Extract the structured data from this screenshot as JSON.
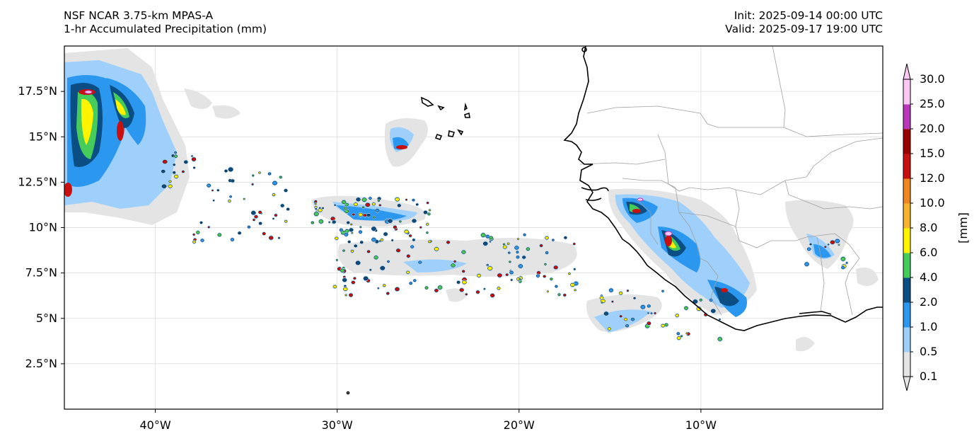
{
  "header": {
    "model": "NSF NCAR 3.75-km MPAS-A",
    "field": "1-hr Accumulated Precipitation (mm)",
    "init": "Init: 2025-09-14 00:00 UTC",
    "valid": "Valid: 2025-09-17 19:00 UTC"
  },
  "map": {
    "extent": {
      "lon": [
        -45,
        0
      ],
      "lat": [
        0,
        20
      ]
    },
    "lat_ticks": [
      {
        "value": 17.5,
        "label": "17.5°N"
      },
      {
        "value": 15,
        "label": "15°N"
      },
      {
        "value": 12.5,
        "label": "12.5°N"
      },
      {
        "value": 10,
        "label": "10°N"
      },
      {
        "value": 7.5,
        "label": "7.5°N"
      },
      {
        "value": 5,
        "label": "5°N"
      },
      {
        "value": 2.5,
        "label": "2.5°N"
      }
    ],
    "lon_ticks": [
      {
        "value": -40,
        "label": "40°W"
      },
      {
        "value": -30,
        "label": "30°W"
      },
      {
        "value": -20,
        "label": "20°W"
      },
      {
        "value": -10,
        "label": "10°W"
      }
    ],
    "gridlines": true
  },
  "colorbar": {
    "unit_label": "[mm]",
    "levels": [
      "0.1",
      "0.5",
      "1.0",
      "2.0",
      "4.0",
      "6.0",
      "8.0",
      "10.0",
      "12.0",
      "15.0",
      "20.0",
      "25.0",
      "30.0"
    ],
    "colors": [
      "#e4e4e4",
      "#9fd0fb",
      "#2c97ee",
      "#0a4e83",
      "#46cc5a",
      "#fff300",
      "#f6b42c",
      "#ee8722",
      "#c91010",
      "#9a0000",
      "#b937b8",
      "#fbc7f4"
    ],
    "extend": "both"
  },
  "colors": {
    "coastline": "#000000",
    "borders": "#a0a0a0",
    "grid": "#d9d9d9"
  }
}
